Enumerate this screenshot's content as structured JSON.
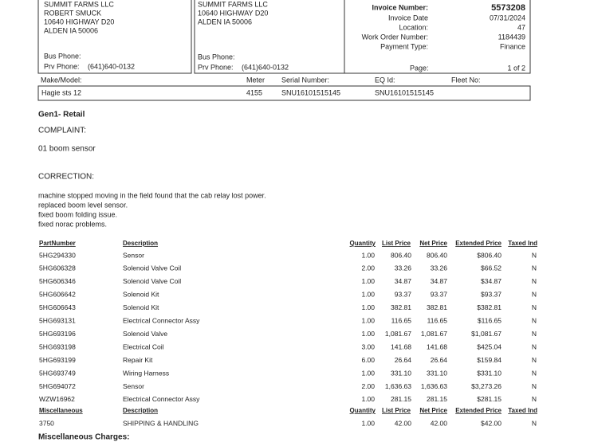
{
  "customer": {
    "lines": [
      "SUMMIT FARMS LLC",
      "ROBERT SMUCK",
      "10640 HIGHWAY D20",
      "ALDEN IA 50006"
    ],
    "bus_phone_label": "Bus Phone:",
    "prv_phone_label": "Prv Phone:",
    "prv_phone": "(641)640-0132"
  },
  "ship_to": {
    "lines": [
      "SUMMIT FARMS LLC",
      "10640 HIGHWAY D20",
      "ALDEN IA 50006"
    ],
    "bus_phone_label": "Bus Phone:",
    "prv_phone_label": "Prv Phone:",
    "prv_phone": "(641)640-0132"
  },
  "invoice": {
    "fields": [
      {
        "label": "Invoice Number:",
        "value": "5573208"
      },
      {
        "label": "Invoice Date",
        "value": "07/31/2024"
      },
      {
        "label": "Location:",
        "value": "47"
      },
      {
        "label": "Work Order Number:",
        "value": "1184439"
      },
      {
        "label": "Payment Type:",
        "value": "Finance"
      }
    ],
    "page_label": "Page:",
    "page": "1 of 2"
  },
  "equipment": {
    "headers": [
      "Make/Model:",
      "Meter",
      "Serial Number:",
      "EQ Id:",
      "Fleet No:"
    ],
    "values": [
      "Hagie sts 12",
      "4155",
      "SNU16101515145",
      "SNU16101515145"
    ]
  },
  "section": "Gen1-  Retail",
  "complaint_label": "COMPLAINT:",
  "complaint": "01 boom sensor",
  "correction_label": "CORRECTION:",
  "correction": [
    "machine stopped moving in the field found that the cab relay lost power.",
    "replaced boom level sensor.",
    "fixed boom folding issue.",
    "fixed norac problems."
  ],
  "parts": {
    "headers": [
      "PartNumber",
      "Description",
      "Quantity",
      "List Price",
      "Net Price",
      "Extended Price",
      "Taxed Ind"
    ],
    "rows": [
      [
        "5HG294330",
        "Sensor",
        "1.00",
        "806.40",
        "806.40",
        "$806.40",
        "N"
      ],
      [
        "5HG606328",
        "Solenoid Valve Coil",
        "2.00",
        "33.26",
        "33.26",
        "$66.52",
        "N"
      ],
      [
        "5HG606346",
        "Solenoid Valve Coil",
        "1.00",
        "34.87",
        "34.87",
        "$34.87",
        "N"
      ],
      [
        "5HG606642",
        "Solenoid Kit",
        "1.00",
        "93.37",
        "93.37",
        "$93.37",
        "N"
      ],
      [
        "5HG606643",
        "Solenoid Kit",
        "1.00",
        "382.81",
        "382.81",
        "$382.81",
        "N"
      ],
      [
        "5HG693131",
        "Electrical Connector Assy",
        "1.00",
        "116.65",
        "116.65",
        "$116.65",
        "N"
      ],
      [
        "5HG693196",
        "Solenoid Valve",
        "1.00",
        "1,081.67",
        "1,081.67",
        "$1,081.67",
        "N"
      ],
      [
        "5HG693198",
        "Electrical Coil",
        "3.00",
        "141.68",
        "141.68",
        "$425.04",
        "N"
      ],
      [
        "5HG693199",
        "Repair Kit",
        "6.00",
        "26.64",
        "26.64",
        "$159.84",
        "N"
      ],
      [
        "5HG693749",
        "Wiring Harness",
        "1.00",
        "331.10",
        "331.10",
        "$331.10",
        "N"
      ],
      [
        "5HG694072",
        "Sensor",
        "2.00",
        "1,636.63",
        "1,636.63",
        "$3,273.26",
        "N"
      ],
      [
        "WZW16962",
        "Electrical Connector Assy",
        "1.00",
        "281.15",
        "281.15",
        "$281.15",
        "N"
      ]
    ]
  },
  "misc": {
    "headers": [
      "Miscellaneous",
      "Description",
      "Quantity",
      "List Price",
      "Net Price",
      "Extended Price",
      "Taxed Ind"
    ],
    "rows": [
      [
        "3750",
        "SHIPPING & HANDLING",
        "1.00",
        "42.00",
        "42.00",
        "$42.00",
        "N"
      ]
    ]
  },
  "misc_charges_label": "Miscellaneous Charges:"
}
